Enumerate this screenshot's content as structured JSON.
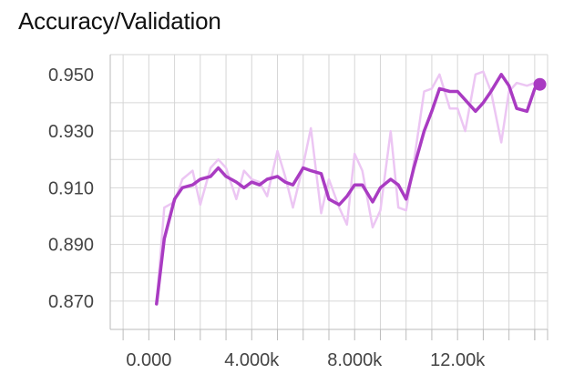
{
  "chart_data": {
    "type": "line",
    "title": "Accuracy/Validation",
    "xlabel": "",
    "ylabel": "",
    "xlim": [
      -1500,
      15500
    ],
    "ylim": [
      0.86,
      0.957
    ],
    "grid": true,
    "x_ticks": [
      0,
      4000,
      8000,
      12000
    ],
    "x_tick_labels": [
      "0.000",
      "4.000k",
      "8.000k",
      "12.00k"
    ],
    "y_ticks": [
      0.87,
      0.89,
      0.91,
      0.93,
      0.95
    ],
    "y_tick_labels": [
      "0.870",
      "0.890",
      "0.910",
      "0.930",
      "0.950"
    ],
    "colors": {
      "smoothed": "#a93bc2",
      "raw": "#ecc6f3",
      "grid": "#d6d6d6",
      "axis": "#bbbbbb"
    },
    "series": [
      {
        "role": "raw",
        "x": [
          300,
          600,
          1000,
          1300,
          1700,
          2000,
          2400,
          2700,
          3000,
          3400,
          3700,
          4000,
          4300,
          4600,
          5000,
          5300,
          5600,
          6000,
          6300,
          6700,
          7000,
          7400,
          7700,
          8000,
          8300,
          8700,
          9000,
          9400,
          9700,
          10000,
          10300,
          10700,
          11000,
          11300,
          11700,
          12000,
          12300,
          12700,
          13000,
          13300,
          13700,
          14000,
          14300,
          14700,
          15000
        ],
        "y": [
          0.869,
          0.903,
          0.905,
          0.913,
          0.916,
          0.904,
          0.917,
          0.92,
          0.917,
          0.906,
          0.916,
          0.913,
          0.912,
          0.907,
          0.923,
          0.914,
          0.903,
          0.918,
          0.931,
          0.901,
          0.913,
          0.903,
          0.897,
          0.922,
          0.916,
          0.896,
          0.902,
          0.93,
          0.903,
          0.902,
          0.919,
          0.944,
          0.945,
          0.95,
          0.938,
          0.938,
          0.93,
          0.95,
          0.951,
          0.944,
          0.926,
          0.944,
          0.947,
          0.946,
          0.947
        ]
      },
      {
        "role": "smoothed",
        "x": [
          300,
          600,
          1000,
          1300,
          1700,
          2000,
          2400,
          2700,
          3000,
          3400,
          3700,
          4000,
          4300,
          4600,
          5000,
          5300,
          5600,
          6000,
          6300,
          6700,
          7000,
          7400,
          7700,
          8000,
          8300,
          8700,
          9000,
          9400,
          9700,
          10000,
          10300,
          10700,
          11000,
          11300,
          11700,
          12000,
          12300,
          12700,
          13000,
          13300,
          13700,
          14000,
          14300,
          14700,
          15000
        ],
        "y": [
          0.869,
          0.892,
          0.906,
          0.91,
          0.911,
          0.913,
          0.914,
          0.917,
          0.914,
          0.912,
          0.91,
          0.912,
          0.911,
          0.913,
          0.914,
          0.912,
          0.911,
          0.917,
          0.916,
          0.915,
          0.906,
          0.904,
          0.907,
          0.911,
          0.911,
          0.905,
          0.91,
          0.913,
          0.911,
          0.906,
          0.917,
          0.93,
          0.937,
          0.945,
          0.944,
          0.944,
          0.941,
          0.937,
          0.94,
          0.944,
          0.95,
          0.946,
          0.938,
          0.937,
          0.945
        ]
      }
    ],
    "end_marker": {
      "x": 15200,
      "y": 0.9465
    }
  }
}
